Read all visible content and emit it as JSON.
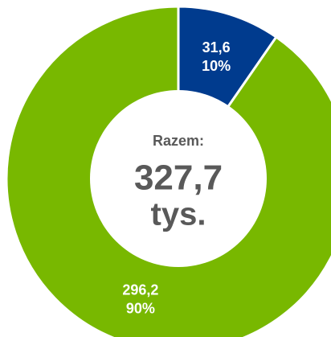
{
  "chart_data": {
    "type": "donut",
    "categories": [
      null,
      null
    ],
    "values": [
      31.6,
      296.2
    ],
    "value_labels": [
      "31,6",
      "296,2"
    ],
    "percentage_labels": [
      "10%",
      "90%"
    ],
    "colors": [
      "#003b8e",
      "#78b800"
    ],
    "center_text": [
      "Razem:",
      "327,7",
      "tys."
    ]
  }
}
